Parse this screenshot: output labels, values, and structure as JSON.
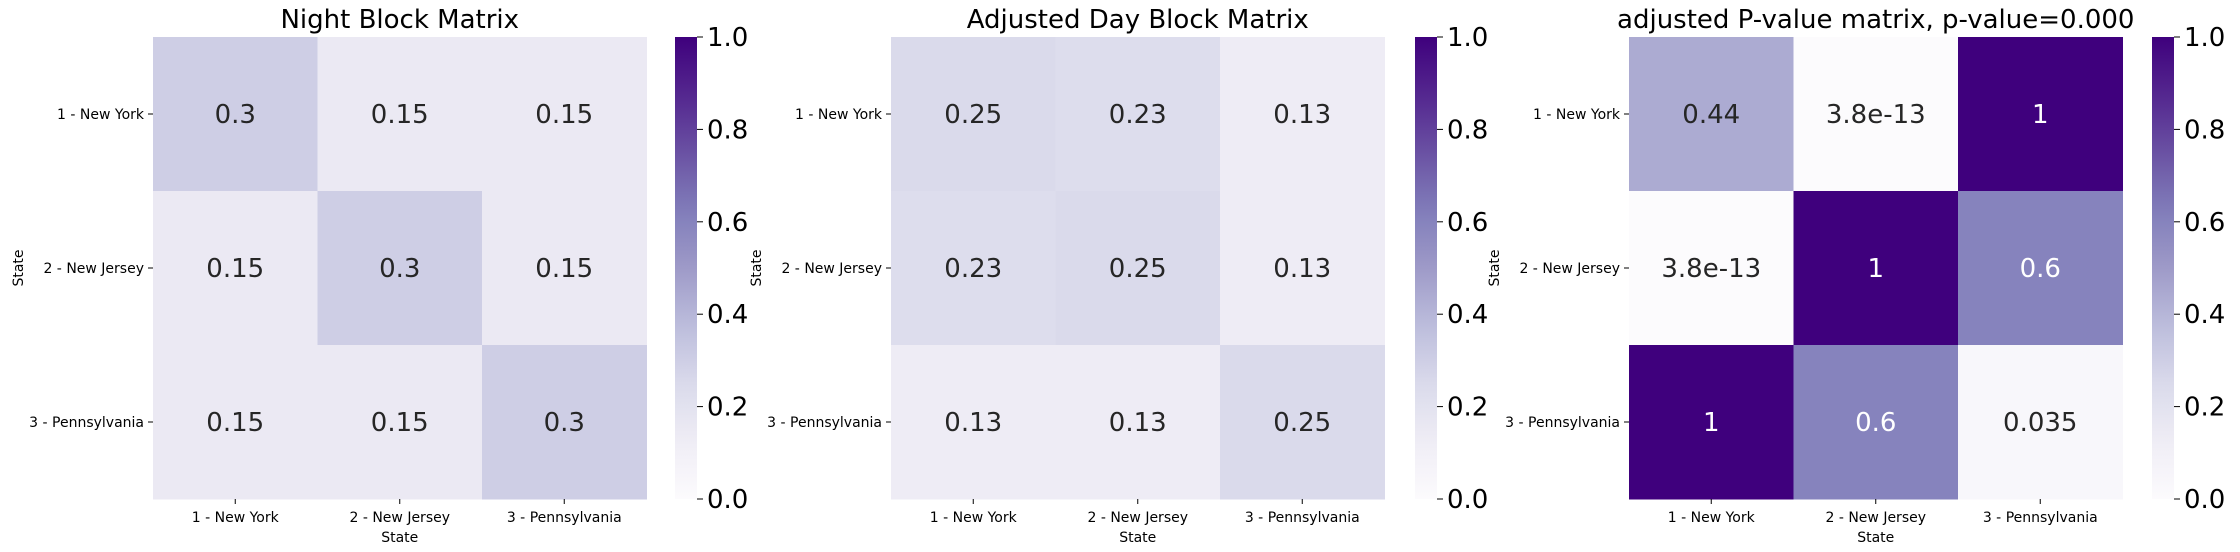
{
  "chart_data": [
    {
      "type": "heatmap",
      "title": "Night Block Matrix",
      "xlabel": "State",
      "ylabel": "State",
      "x_categories": [
        "1 - New York",
        "2 - New Jersey",
        "3 - Pennsylvania"
      ],
      "y_categories": [
        "1 - New York",
        "2 - New Jersey",
        "3 - Pennsylvania"
      ],
      "values": [
        [
          0.3,
          0.15,
          0.15
        ],
        [
          0.15,
          0.3,
          0.15
        ],
        [
          0.15,
          0.15,
          0.3
        ]
      ],
      "annotations": [
        [
          "0.3",
          "0.15",
          "0.15"
        ],
        [
          "0.15",
          "0.3",
          "0.15"
        ],
        [
          "0.15",
          "0.15",
          "0.3"
        ]
      ],
      "vmin": 0,
      "vmax": 1,
      "colormap": "Purples",
      "colorbar_ticks": [
        "0.0",
        "0.2",
        "0.4",
        "0.6",
        "0.8",
        "1.0"
      ]
    },
    {
      "type": "heatmap",
      "title": "Adjusted Day Block Matrix",
      "xlabel": "State",
      "ylabel": "State",
      "x_categories": [
        "1 - New York",
        "2 - New Jersey",
        "3 - Pennsylvania"
      ],
      "y_categories": [
        "1 - New York",
        "2 - New Jersey",
        "3 - Pennsylvania"
      ],
      "values": [
        [
          0.25,
          0.23,
          0.13
        ],
        [
          0.23,
          0.25,
          0.13
        ],
        [
          0.13,
          0.13,
          0.25
        ]
      ],
      "annotations": [
        [
          "0.25",
          "0.23",
          "0.13"
        ],
        [
          "0.23",
          "0.25",
          "0.13"
        ],
        [
          "0.13",
          "0.13",
          "0.25"
        ]
      ],
      "vmin": 0,
      "vmax": 1,
      "colormap": "Purples",
      "colorbar_ticks": [
        "0.0",
        "0.2",
        "0.4",
        "0.6",
        "0.8",
        "1.0"
      ]
    },
    {
      "type": "heatmap",
      "title": "adjusted P-value matrix, p-value=0.000",
      "xlabel": "State",
      "ylabel": "State",
      "x_categories": [
        "1 - New York",
        "2 - New Jersey",
        "3 - Pennsylvania"
      ],
      "y_categories": [
        "1 - New York",
        "2 - New Jersey",
        "3 - Pennsylvania"
      ],
      "values": [
        [
          0.44,
          3.8e-13,
          1
        ],
        [
          3.8e-13,
          1,
          0.6
        ],
        [
          1,
          0.6,
          0.035
        ]
      ],
      "annotations": [
        [
          "0.44",
          "3.8e-13",
          "1"
        ],
        [
          "3.8e-13",
          "1",
          "0.6"
        ],
        [
          "1",
          "0.6",
          "0.035"
        ]
      ],
      "vmin": 0,
      "vmax": 1,
      "colormap": "Purples",
      "colorbar_ticks": [
        "0.0",
        "0.2",
        "0.4",
        "0.6",
        "0.8",
        "1.0"
      ]
    }
  ]
}
